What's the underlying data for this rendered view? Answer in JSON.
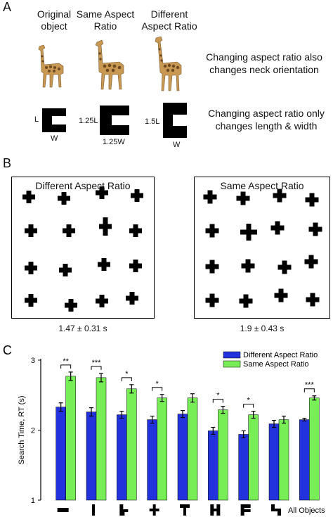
{
  "panelA": {
    "letter": "A",
    "headers": [
      "Original object",
      "Same Aspect Ratio",
      "Different Aspect Ratio"
    ],
    "note_top": "Changing aspect ratio also changes neck orientation",
    "note_bottom": "Changing aspect ratio only changes length & width",
    "dims": {
      "orig_l": "L",
      "orig_w": "W",
      "same_l": "1.25L",
      "same_w": "1.25W",
      "diff_l": "1.5L",
      "diff_w": "W"
    }
  },
  "panelB": {
    "letter": "B",
    "left_title": "Different Aspect Ratio",
    "right_title": "Same Aspect Ratio",
    "left_time": "1.47 ± 0.31 s",
    "right_time": "1.9 ± 0.43 s"
  },
  "chart_data": {
    "type": "bar",
    "panel_letter": "C",
    "ylabel": "Search Time, RT (s)",
    "ylim": [
      1,
      3
    ],
    "yticks": [
      "1",
      "2",
      "3"
    ],
    "categories": [
      "shape-1",
      "shape-2",
      "shape-3",
      "shape-4",
      "shape-5",
      "shape-6",
      "shape-7",
      "shape-8",
      "All Objects"
    ],
    "category_labels": [
      "",
      "",
      "",
      "",
      "",
      "",
      "",
      "",
      "All Objects"
    ],
    "series": [
      {
        "name": "Different Aspect Ratio",
        "color": "#2233dd",
        "values": [
          2.33,
          2.26,
          2.22,
          2.15,
          2.23,
          1.99,
          1.94,
          2.09,
          2.15
        ],
        "errors": [
          0.06,
          0.06,
          0.05,
          0.05,
          0.05,
          0.05,
          0.05,
          0.05,
          0.02
        ]
      },
      {
        "name": "Same Aspect Ratio",
        "color": "#77ee55",
        "values": [
          2.77,
          2.75,
          2.59,
          2.46,
          2.46,
          2.29,
          2.22,
          2.15,
          2.46
        ],
        "errors": [
          0.06,
          0.06,
          0.06,
          0.05,
          0.06,
          0.05,
          0.05,
          0.05,
          0.03
        ]
      }
    ],
    "significance": [
      "**",
      "***",
      "*",
      "*",
      "",
      "*",
      "*",
      "",
      "***"
    ],
    "legend_position": "top-right",
    "grid": false
  }
}
